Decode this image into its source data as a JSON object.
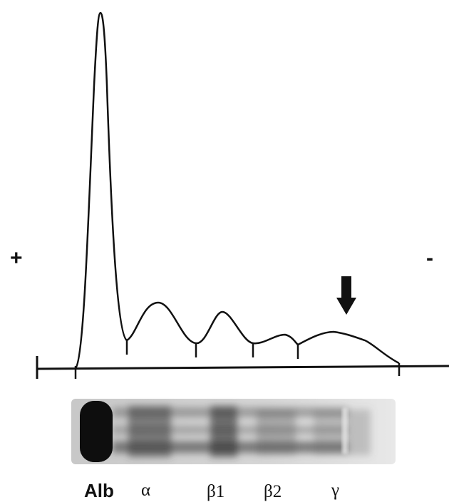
{
  "polarity": {
    "anode": "+",
    "cathode": "-"
  },
  "fractions": [
    {
      "id": "alb",
      "label": "Alb"
    },
    {
      "id": "alpha",
      "label": "α"
    },
    {
      "id": "beta1",
      "label": "β1"
    },
    {
      "id": "beta2",
      "label": "β2"
    },
    {
      "id": "gamma",
      "label": "γ"
    }
  ],
  "colors": {
    "ink": "#111111",
    "gel_background": "#d2d2d2",
    "albumin_band": "#0e0e0e",
    "protein_band": "#3a3a3a"
  },
  "icons": {
    "marker": "down-arrow-icon"
  }
}
